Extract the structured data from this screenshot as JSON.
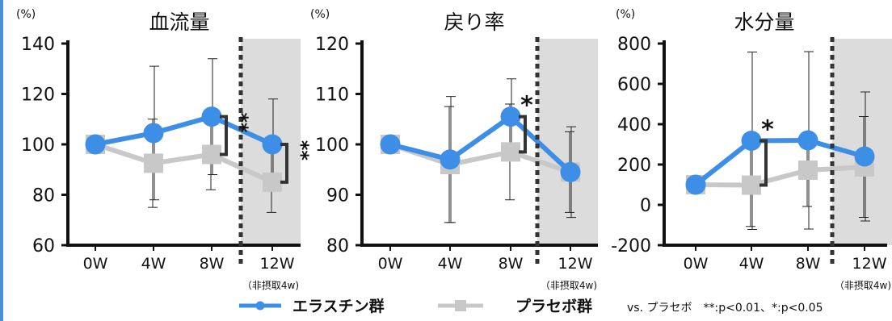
{
  "colors": {
    "elastin": "#3d8ee6",
    "placebo": "#c8c8c8",
    "shade": "#dcdcdc",
    "axis": "#111111"
  },
  "legend": {
    "elastin_label": "エラスチン群",
    "placebo_label": "プラセボ群",
    "note": "vs. プラセボ　**:p<0.01、*:p<0.05"
  },
  "chart_data": [
    {
      "type": "line",
      "title": "血流量",
      "unit": "(%)",
      "categories": [
        "0W",
        "4W",
        "8W",
        "12W"
      ],
      "sublabel": "（非摂取4w)",
      "ylim": [
        60,
        140
      ],
      "yticks": [
        "60",
        "80",
        "100",
        "120",
        "140"
      ],
      "series": [
        {
          "name": "エラスチン群",
          "values": [
            100,
            104.5,
            111,
            100
          ],
          "err": [
            0,
            26.5,
            23,
            18
          ]
        },
        {
          "name": "プラセボ群",
          "values": [
            100,
            92.5,
            96,
            85
          ],
          "err": [
            0,
            17.5,
            14,
            12
          ]
        }
      ],
      "annotations": [
        {
          "at": "8W",
          "text": "**"
        },
        {
          "at": "12W",
          "text": "**"
        }
      ]
    },
    {
      "type": "line",
      "title": "戻り率",
      "unit": "(%)",
      "categories": [
        "0W",
        "4W",
        "8W",
        "12W"
      ],
      "sublabel": "（非摂取4w)",
      "ylim": [
        80,
        120
      ],
      "yticks": [
        "80",
        "90",
        "100",
        "110",
        "120"
      ],
      "series": [
        {
          "name": "エラスチン群",
          "values": [
            100,
            97,
            105.5,
            94.5
          ],
          "err": [
            0,
            12.5,
            7.5,
            9
          ]
        },
        {
          "name": "プラセボ群",
          "values": [
            100,
            96,
            98.5,
            94.5
          ],
          "err": [
            0,
            11.5,
            9.5,
            8
          ]
        }
      ],
      "annotations": [
        {
          "at": "8W",
          "text": "*"
        }
      ]
    },
    {
      "type": "line",
      "title": "水分量",
      "unit": "(%)",
      "categories": [
        "0W",
        "4W",
        "8W",
        "12W"
      ],
      "sublabel": "（非摂取4w)",
      "ylim": [
        -200,
        800
      ],
      "yticks": [
        "-200",
        "0",
        "200",
        "400",
        "600",
        "800"
      ],
      "series": [
        {
          "name": "エラスチン群",
          "values": [
            100,
            318,
            320,
            240
          ],
          "err": [
            0,
            440,
            440,
            320
          ]
        },
        {
          "name": "プラセボ群",
          "values": [
            100,
            98,
            172,
            188
          ],
          "err": [
            0,
            205,
            180,
            250
          ]
        }
      ],
      "annotations": [
        {
          "at": "4W",
          "text": "*"
        }
      ]
    }
  ]
}
